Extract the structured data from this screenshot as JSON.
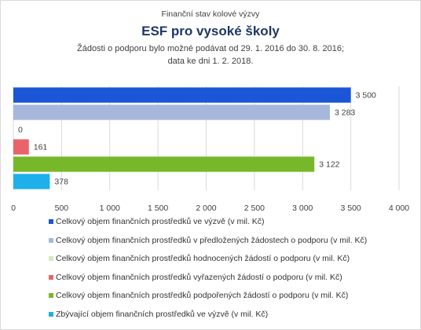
{
  "header": {
    "supertitle": "Finanční stav kolové výzvy",
    "title": "ESF pro vysoké školy",
    "subtitle_line1": "Žádosti o podporu bylo možné  podávat od 29. 1. 2016 do 30. 8. 2016;",
    "subtitle_line2": "data ke dni 1. 2. 2018."
  },
  "chart_data": {
    "type": "bar",
    "orientation": "horizontal",
    "xlim": [
      0,
      4000
    ],
    "x_ticks": [
      0,
      500,
      1000,
      1500,
      2000,
      2500,
      3000,
      3500,
      4000
    ],
    "x_tick_labels": [
      "0",
      "500",
      "1 000",
      "1 500",
      "2 000",
      "2 500",
      "3 000",
      "3 500",
      "4 000"
    ],
    "grid": true,
    "legend_position": "bottom",
    "series": [
      {
        "name": "Celkový objem finančních prostředků ve výzvě (v mil. Kč)",
        "value": 3500,
        "label": "3 500",
        "color": "#1a56d6"
      },
      {
        "name": "Celkový objem finančních prostředků v předložených žádostech o podporu (v mil. Kč)",
        "value": 3283,
        "label": "3 283",
        "color": "#a7b7dc"
      },
      {
        "name": "Celkový objem finančních prostředků hodnocených žádostí o podporu (v mil. Kč)",
        "value": 0,
        "label": "0",
        "color": "#d3e7c5"
      },
      {
        "name": "Celkový objem finančních prostředků vyřazených žádostí o podporu (v mil. Kč)",
        "value": 161,
        "label": "161",
        "color": "#e8646a"
      },
      {
        "name": "Celkový objem finančních prostředků podpořených žádostí o podporu (v mil. Kč)",
        "value": 3122,
        "label": "3 122",
        "color": "#77b82a"
      },
      {
        "name": "Zbývající objem finančních prostředků ve výzvě (v mil. Kč)",
        "value": 378,
        "label": "378",
        "color": "#1eb0ea"
      }
    ]
  }
}
